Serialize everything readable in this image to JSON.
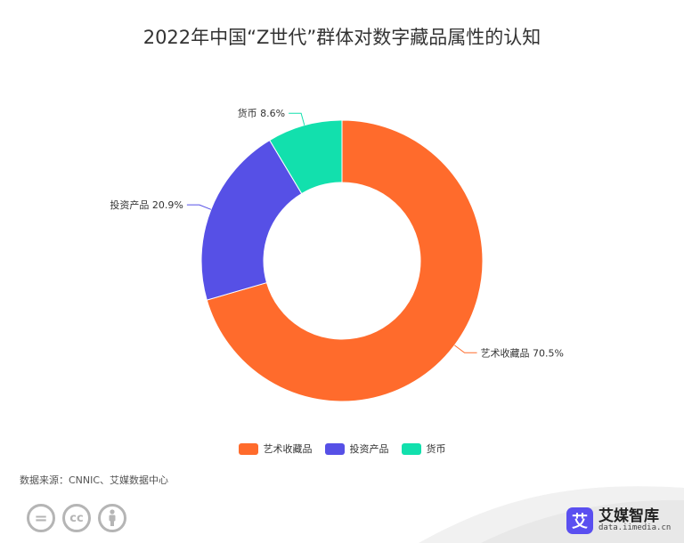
{
  "title": "2022年中国“Z世代”群体对数字藏品属性的认知",
  "chart_data": {
    "type": "pie",
    "donut": true,
    "categories": [
      "艺术收藏品",
      "投资产品",
      "货币"
    ],
    "values": [
      70.5,
      20.9,
      8.6
    ],
    "unit": "%",
    "colors": [
      "#ff6b2c",
      "#5650e6",
      "#12e0ad"
    ],
    "data_labels": [
      "艺术收藏品 70.5%",
      "投资产品 20.9%",
      "货币 8.6%"
    ],
    "legend": [
      "艺术收藏品",
      "投资产品",
      "货币"
    ],
    "legend_position": "bottom"
  },
  "source": "数据来源：CNNIC、艾媒数据中心",
  "brand": {
    "logo_char": "艾",
    "name": "艾媒智库",
    "url": "data.iimedia.cn"
  },
  "license_icons": [
    "equals-icon",
    "cc-icon",
    "person-icon"
  ],
  "license_text": {
    "equals": "=",
    "cc": "cc"
  }
}
